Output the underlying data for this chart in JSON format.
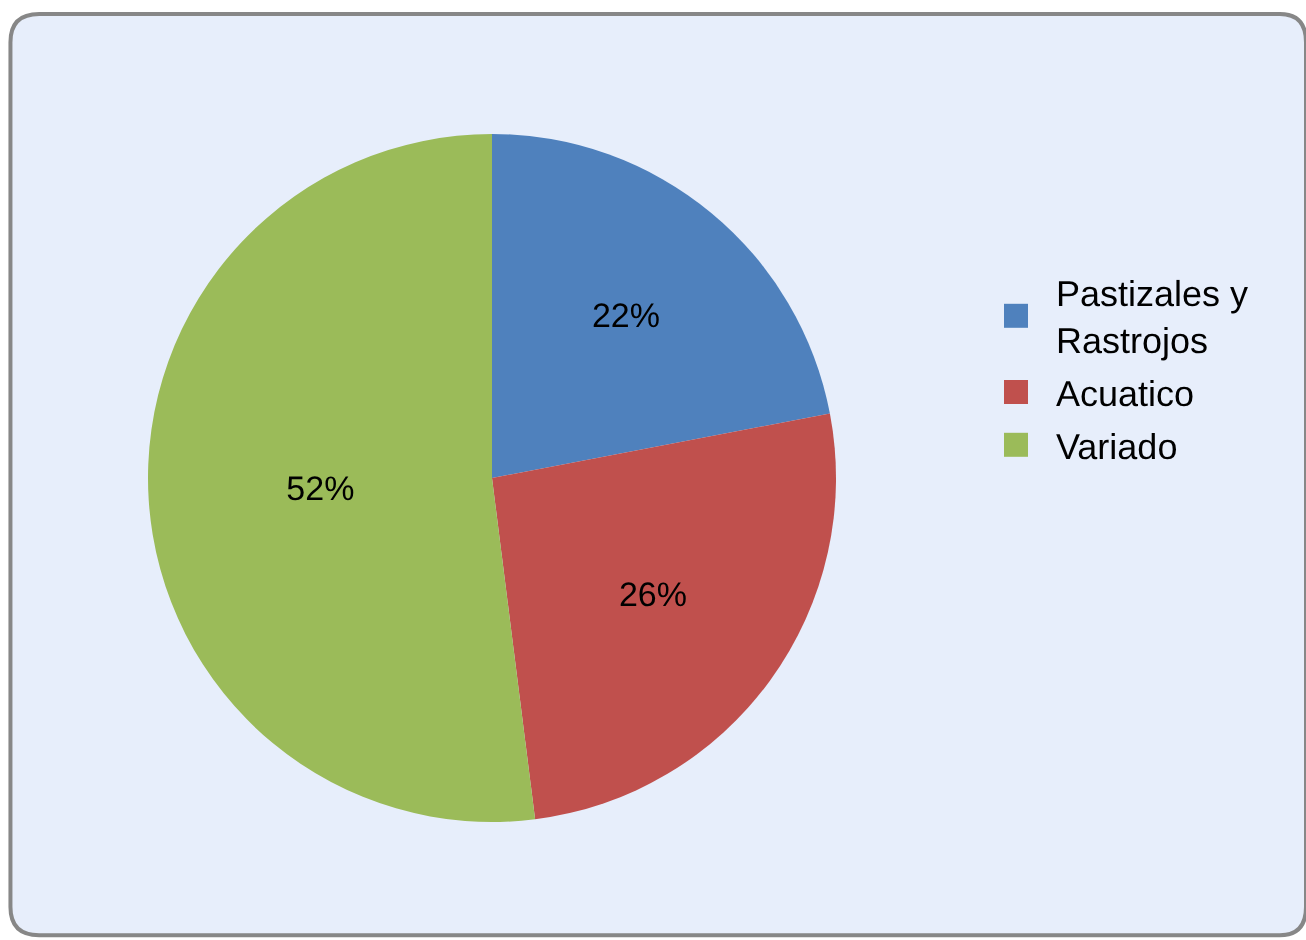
{
  "chart_data": {
    "type": "pie",
    "categories": [
      "Pastizales y Rastrojos",
      "Acuatico",
      "Variado"
    ],
    "values": [
      22,
      26,
      52
    ],
    "value_labels": [
      "22%",
      "26%",
      "52%"
    ],
    "colors": [
      "#4f81bd",
      "#c0504d",
      "#9bbb59"
    ],
    "legend": "right"
  }
}
